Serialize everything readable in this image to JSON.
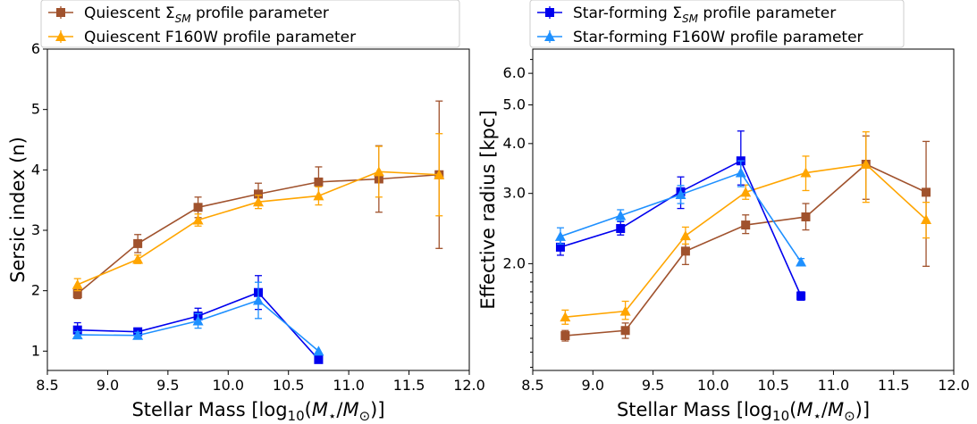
{
  "chart_data": [
    {
      "type": "line",
      "xlabel": "Stellar Mass [log10(M*/M⊙)]",
      "ylabel": "Sersic index (n)",
      "xlim": [
        8.5,
        12.0
      ],
      "ylim": [
        0.68,
        6.0
      ],
      "xticks": [
        "8.5",
        "9.0",
        "9.5",
        "10.0",
        "10.5",
        "11.0",
        "11.5",
        "12.0"
      ],
      "yticks": [
        "1",
        "2",
        "3",
        "4",
        "5",
        "6"
      ],
      "legend": {
        "placement": "top-left, above plot",
        "items": [
          {
            "pre": "Quiescent ",
            "sym": "Σ",
            "sub": "SM",
            "post": " profile parameter",
            "color": "#a0522d",
            "marker": "square"
          },
          {
            "pre": "Quiescent F160W profile parameter",
            "sym": "",
            "sub": "",
            "post": "",
            "color": "#ffa500",
            "marker": "triangle"
          }
        ]
      },
      "series": [
        {
          "name": "Quiescent ΣSM profile parameter",
          "color": "#a0522d",
          "marker": "square",
          "x": [
            8.75,
            9.25,
            9.75,
            10.25,
            10.75,
            11.25,
            11.75
          ],
          "y": [
            1.95,
            2.78,
            3.38,
            3.6,
            3.8,
            3.85,
            3.92
          ],
          "err": [
            0.08,
            0.15,
            0.17,
            0.18,
            0.25,
            0.55,
            1.22
          ]
        },
        {
          "name": "Quiescent F160W profile parameter",
          "color": "#ffa500",
          "marker": "triangle",
          "x": [
            8.75,
            9.25,
            9.75,
            10.25,
            10.75,
            11.25,
            11.75
          ],
          "y": [
            2.1,
            2.52,
            3.17,
            3.47,
            3.57,
            3.97,
            3.92
          ],
          "err": [
            0.1,
            0.07,
            0.1,
            0.11,
            0.15,
            0.42,
            0.68
          ]
        },
        {
          "name": "Star-forming ΣSM profile parameter",
          "color": "#0000ee",
          "marker": "square",
          "x": [
            8.75,
            9.25,
            9.75,
            10.25,
            10.75
          ],
          "y": [
            1.35,
            1.32,
            1.58,
            1.97,
            0.86
          ],
          "err": [
            0.12,
            0.06,
            0.13,
            0.28,
            0.0
          ]
        },
        {
          "name": "Star-forming F160W profile parameter",
          "color": "#1e90ff",
          "marker": "triangle",
          "x": [
            8.75,
            9.25,
            9.75,
            10.25,
            10.75
          ],
          "y": [
            1.27,
            1.26,
            1.5,
            1.84,
            1.0
          ],
          "err": [
            0.05,
            0.05,
            0.12,
            0.3,
            0.0
          ]
        }
      ]
    },
    {
      "type": "line",
      "xlabel": "Stellar Mass [log10(M*/M⊙)]",
      "ylabel": "Effective radius [kpc]",
      "xlim": [
        8.5,
        12.0
      ],
      "ylim": [
        1.08,
        6.9
      ],
      "yscale": "log",
      "xticks": [
        "8.5",
        "9.0",
        "9.5",
        "10.0",
        "10.5",
        "11.0",
        "11.5",
        "12.0"
      ],
      "yticks": [
        "2.0",
        "3.0",
        "4.0",
        "5.0",
        "6.0"
      ],
      "legend": {
        "placement": "top-right, above plot",
        "items": [
          {
            "pre": "Star-forming ",
            "sym": "Σ",
            "sub": "SM",
            "post": " profile parameter",
            "color": "#0000ee",
            "marker": "square"
          },
          {
            "pre": "Star-forming F160W profile parameter",
            "sym": "",
            "sub": "",
            "post": "",
            "color": "#1e90ff",
            "marker": "triangle"
          }
        ]
      },
      "series": [
        {
          "name": "Quiescent ΣSM profile parameter",
          "color": "#a0522d",
          "marker": "square",
          "x": [
            8.77,
            9.27,
            9.77,
            10.27,
            10.77,
            11.27,
            11.77
          ],
          "y": [
            1.32,
            1.36,
            2.15,
            2.5,
            2.62,
            3.55,
            3.02
          ],
          "lo": [
            1.28,
            1.3,
            1.99,
            2.38,
            2.43,
            2.9,
            1.97
          ],
          "hi": [
            1.36,
            1.42,
            2.3,
            2.65,
            2.83,
            4.18,
            4.05
          ]
        },
        {
          "name": "Quiescent F160W profile parameter",
          "color": "#ffa500",
          "marker": "triangle",
          "x": [
            8.77,
            9.27,
            9.77,
            10.27,
            10.77,
            11.27,
            11.77
          ],
          "y": [
            1.47,
            1.52,
            2.35,
            3.02,
            3.38,
            3.55,
            2.58
          ],
          "lo": [
            1.41,
            1.45,
            2.24,
            2.9,
            3.05,
            2.85,
            2.32
          ],
          "hi": [
            1.53,
            1.61,
            2.47,
            3.15,
            3.72,
            4.28,
            2.85
          ]
        },
        {
          "name": "Star-forming ΣSM profile parameter",
          "color": "#0000ee",
          "marker": "square",
          "x": [
            8.73,
            9.23,
            9.73,
            10.23,
            10.73
          ],
          "y": [
            2.2,
            2.45,
            3.03,
            3.62,
            1.66
          ],
          "lo": [
            2.1,
            2.36,
            2.75,
            3.15,
            1.62
          ],
          "hi": [
            2.3,
            2.55,
            3.3,
            4.3,
            1.7
          ]
        },
        {
          "name": "Star-forming F160W profile parameter",
          "color": "#1e90ff",
          "marker": "triangle",
          "x": [
            8.73,
            9.23,
            9.73,
            10.23,
            10.73
          ],
          "y": [
            2.34,
            2.64,
            2.98,
            3.38,
            2.02
          ],
          "lo": [
            2.24,
            2.56,
            2.83,
            3.12,
            1.98
          ],
          "hi": [
            2.46,
            2.73,
            3.14,
            3.62,
            2.06
          ]
        }
      ]
    }
  ]
}
